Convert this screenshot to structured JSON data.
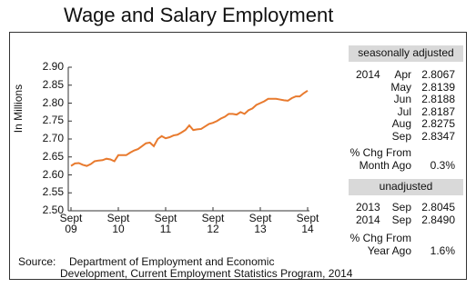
{
  "chart_data": {
    "type": "line",
    "title": "Wage and Salary Employment",
    "y_label": "In Millions",
    "color": "#e87a2e",
    "categories": [
      "Sept\n09",
      null,
      null,
      null,
      null,
      null,
      null,
      null,
      null,
      null,
      null,
      null,
      "Sept\n10",
      null,
      null,
      null,
      null,
      null,
      null,
      null,
      null,
      null,
      null,
      null,
      "Sept\n11",
      null,
      null,
      null,
      null,
      null,
      null,
      null,
      null,
      null,
      null,
      null,
      "Sept\n12",
      null,
      null,
      null,
      null,
      null,
      null,
      null,
      null,
      null,
      null,
      null,
      "Sept\n13",
      null,
      null,
      null,
      null,
      null,
      null,
      null,
      null,
      null,
      null,
      null,
      "Sept\n14"
    ],
    "values": [
      2.625,
      2.632,
      2.633,
      2.628,
      2.625,
      2.63,
      2.638,
      2.64,
      2.641,
      2.645,
      2.643,
      2.638,
      2.655,
      2.655,
      2.655,
      2.662,
      2.668,
      2.672,
      2.68,
      2.688,
      2.69,
      2.68,
      2.7,
      2.708,
      2.702,
      2.705,
      2.71,
      2.712,
      2.718,
      2.725,
      2.738,
      2.725,
      2.727,
      2.728,
      2.735,
      2.742,
      2.745,
      2.75,
      2.757,
      2.762,
      2.77,
      2.77,
      2.768,
      2.775,
      2.77,
      2.78,
      2.785,
      2.795,
      2.8,
      2.805,
      2.812,
      2.812,
      2.812,
      2.81,
      2.808,
      2.8067,
      2.8139,
      2.8188,
      2.8187,
      2.8275,
      2.8347
    ],
    "ylim": [
      2.5,
      2.9
    ],
    "yticks": [
      {
        "value": 2.5,
        "label": "2.50"
      },
      2.55,
      {
        "value": 2.6,
        "label": "2.60"
      },
      2.65,
      {
        "value": 2.7,
        "label": "2.70"
      },
      2.75,
      {
        "value": 2.8,
        "label": "2.80"
      },
      2.85,
      {
        "value": 2.9,
        "label": "2.90"
      }
    ],
    "grid": false
  },
  "panel": {
    "seasonally_adjusted": {
      "header": "seasonally adjusted",
      "rows": [
        {
          "year": "2014",
          "month": "Apr",
          "value": "2.8067"
        },
        {
          "month": "May",
          "value": "2.8139"
        },
        {
          "month": "Jun",
          "value": "2.8188"
        },
        {
          "month": "Jul",
          "value": "2.8187"
        },
        {
          "month": "Aug",
          "value": "2.8275"
        },
        {
          "month": "Sep",
          "value": "2.8347"
        }
      ],
      "change_label": "% Chg From\nMonth Ago",
      "change": "0.3%"
    },
    "unadjusted": {
      "header": "unadjusted",
      "rows": [
        {
          "year": "2013",
          "month": "Sep",
          "value": "2.8045"
        },
        {
          "year": "2014",
          "month": "Sep",
          "value": "2.8490"
        }
      ],
      "change_label": "% Chg From\nYear Ago",
      "change": "1.6%"
    }
  },
  "source": {
    "label": "Source:",
    "lines": [
      "Department of Employment and Economic",
      "Development, Current Employment Statistics Program, 2014"
    ]
  }
}
